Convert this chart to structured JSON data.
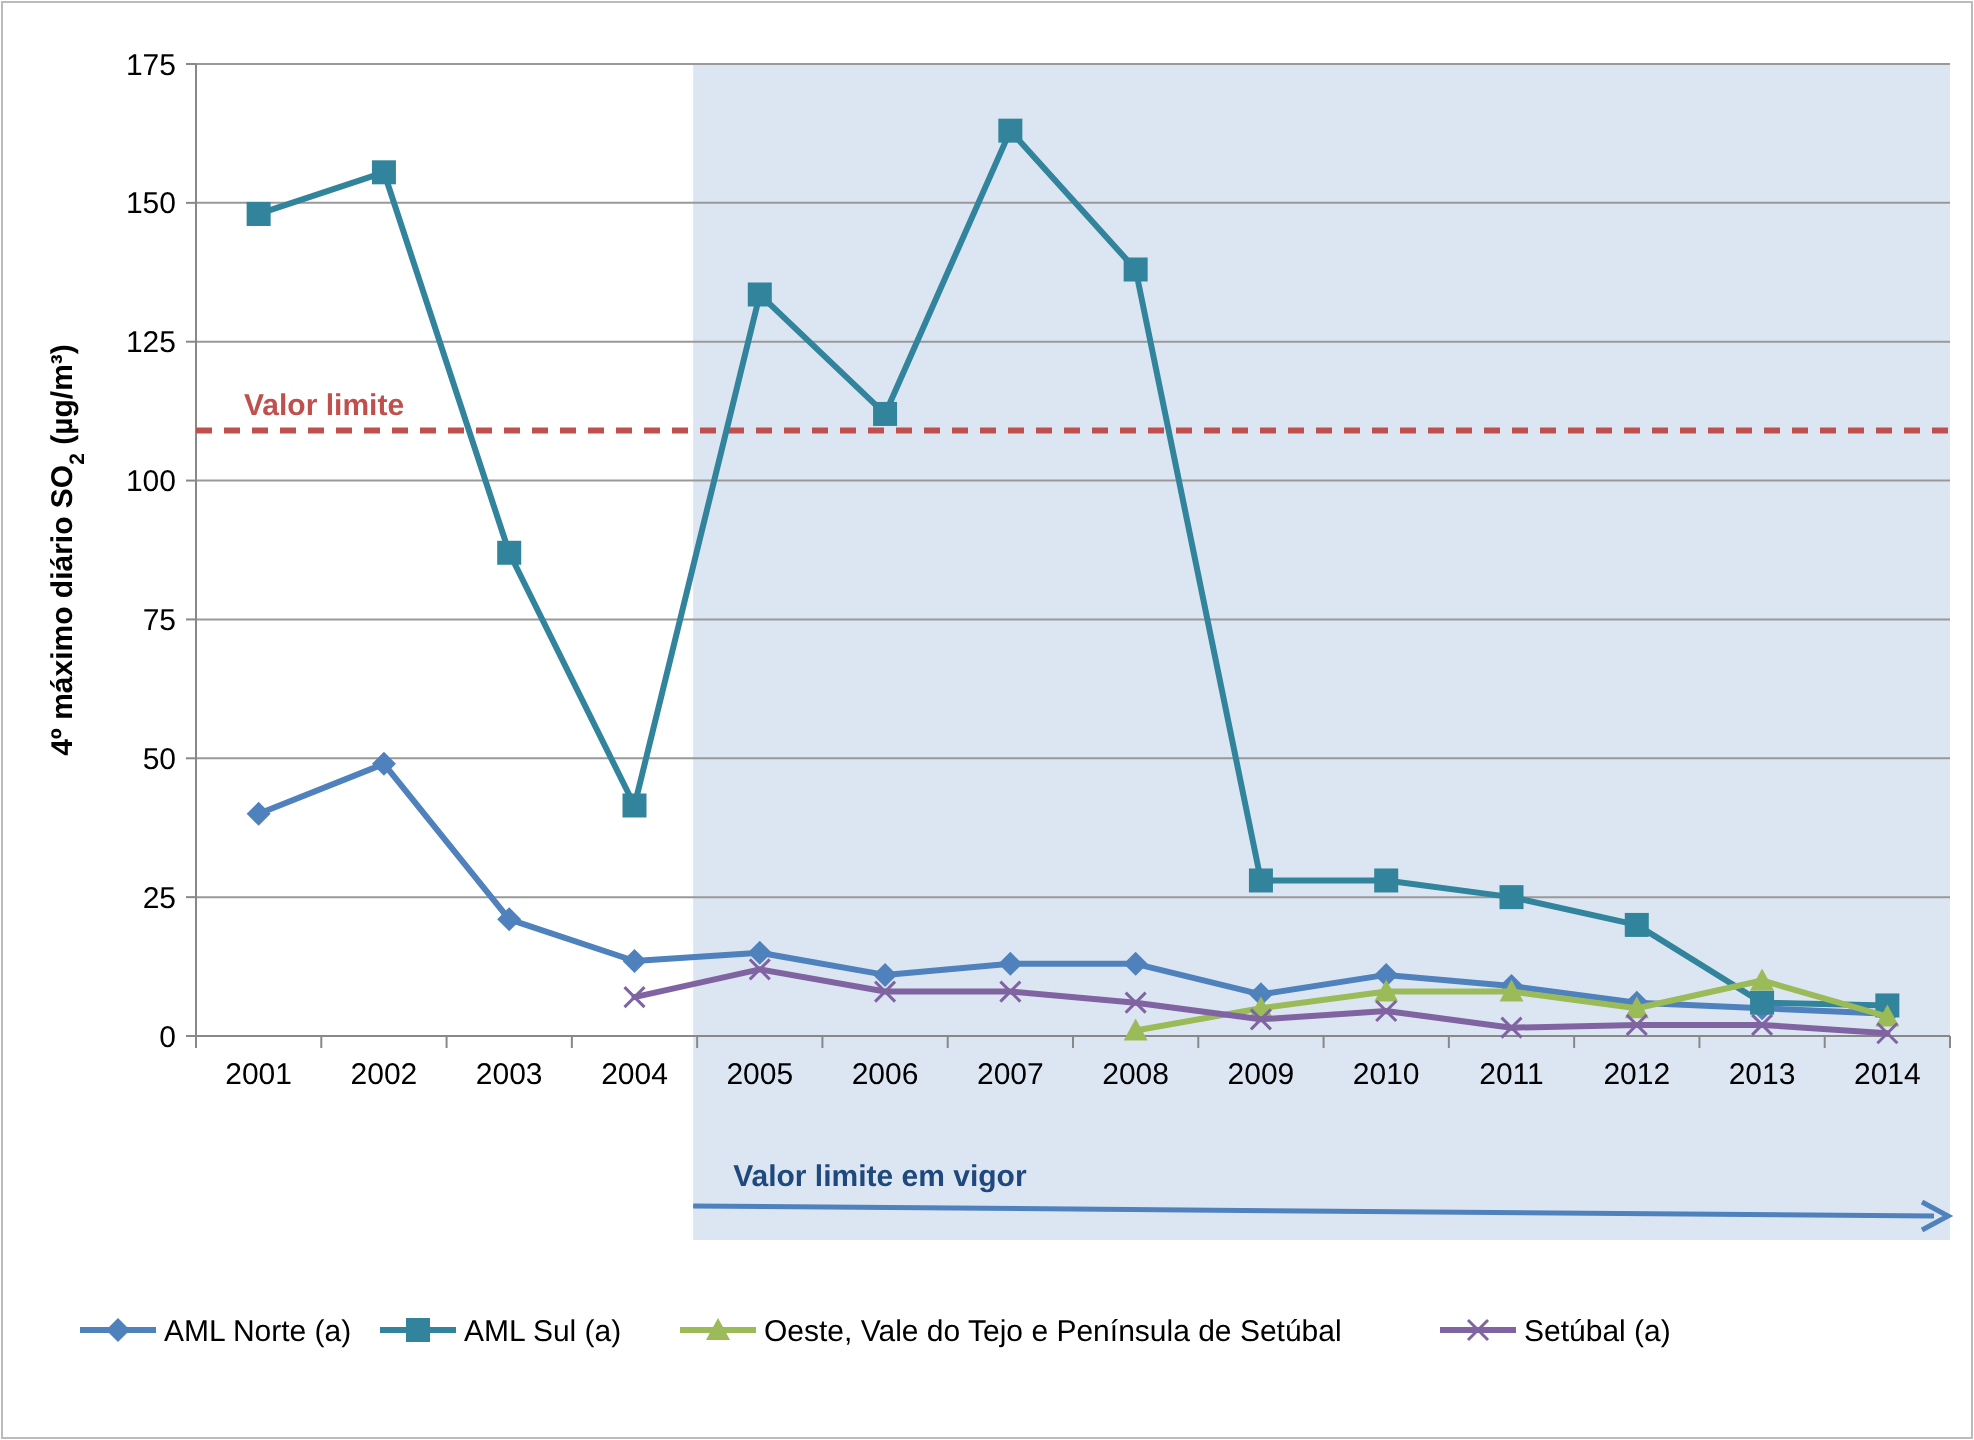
{
  "chart_data": {
    "type": "line",
    "ylabel": "4º máximo diário SO$_{2}$  (µg/m³)",
    "categories": [
      "2001",
      "2002",
      "2003",
      "2004",
      "2005",
      "2006",
      "2007",
      "2008",
      "2009",
      "2010",
      "2011",
      "2012",
      "2013",
      "2014"
    ],
    "series": [
      {
        "name": "AML Norte (a)",
        "color": "#4f81bd",
        "marker": "diamond",
        "values": [
          40,
          49,
          21,
          13.5,
          15,
          11,
          13,
          13,
          7.5,
          11,
          9,
          6,
          5,
          4
        ]
      },
      {
        "name": "AML Sul (a)",
        "color": "#31849b",
        "marker": "square",
        "values": [
          148,
          155.5,
          87,
          41.5,
          133.5,
          112,
          163,
          138,
          28,
          28,
          25,
          20,
          6,
          5.5
        ]
      },
      {
        "name": "Oeste, Vale do Tejo e Península de Setúbal",
        "color": "#9bbb59",
        "marker": "triangle",
        "values": [
          null,
          null,
          null,
          null,
          null,
          null,
          null,
          1,
          5,
          8,
          8,
          5,
          10,
          3.5
        ]
      },
      {
        "name": "Setúbal (a)",
        "color": "#8064a2",
        "marker": "cross",
        "values": [
          null,
          null,
          null,
          7,
          12,
          8,
          8,
          6,
          3,
          4.5,
          1.5,
          2,
          2,
          0.5
        ]
      }
    ],
    "ylim": [
      0,
      175
    ],
    "yticks": [
      0,
      25,
      50,
      75,
      100,
      125,
      150,
      175
    ],
    "grid": "y",
    "legend": "bottom",
    "ref_lines": [
      {
        "axis": "y",
        "value": 109,
        "label": "Valor limite",
        "color": "#c0504d",
        "line_style": "dashed"
      }
    ],
    "bands": [
      {
        "axis": "x",
        "from": "2005",
        "to": "2014",
        "label": "Valor limite em vigor",
        "color": "#dce6f2"
      }
    ]
  }
}
